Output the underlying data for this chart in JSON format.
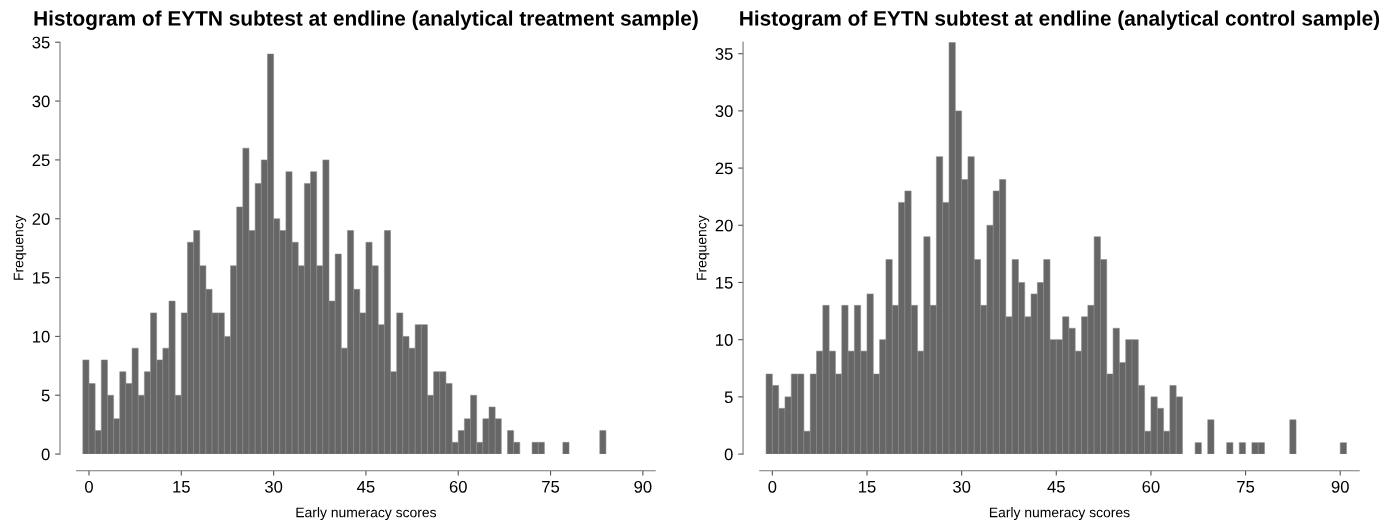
{
  "chart_data": [
    {
      "type": "histogram",
      "title": "Histogram of EYTN subtest at endline (analytical treatment sample)",
      "xlabel": "Early numeracy scores",
      "ylabel": "Frequency",
      "color": "#666666",
      "bins": [
        -1,
        0,
        1,
        2,
        3,
        4,
        5,
        6,
        7,
        8,
        9,
        10,
        11,
        12,
        13,
        14,
        15,
        16,
        17,
        18,
        19,
        20,
        21,
        22,
        23,
        24,
        25,
        26,
        27,
        28,
        29,
        30,
        31,
        32,
        33,
        34,
        35,
        36,
        37,
        38,
        39,
        40,
        41,
        42,
        43,
        44,
        45,
        46,
        47,
        48,
        49,
        50,
        51,
        52,
        53,
        54,
        55,
        56,
        57,
        58,
        59,
        60,
        61,
        62,
        63,
        64,
        65,
        66,
        67,
        68,
        69,
        70,
        71,
        72,
        73,
        74,
        75,
        76,
        77,
        78,
        79,
        80,
        81,
        82,
        83,
        84
      ],
      "values": [
        8,
        6,
        2,
        8,
        5,
        3,
        7,
        6,
        9,
        5,
        7,
        12,
        8,
        9,
        13,
        5,
        12,
        18,
        19,
        16,
        14,
        12,
        12,
        10,
        16,
        21,
        26,
        19,
        23,
        25,
        34,
        20,
        19,
        24,
        18,
        16,
        23,
        24,
        16,
        25,
        13,
        17,
        9,
        19,
        14,
        12,
        18,
        16,
        11,
        19,
        7,
        12,
        10,
        9,
        11,
        11,
        5,
        7,
        7,
        6,
        1,
        2,
        3,
        5,
        1,
        3,
        4,
        3,
        0,
        2,
        1,
        0,
        0,
        1,
        1,
        0,
        0,
        0,
        1,
        0,
        0,
        0,
        0,
        0,
        2
      ],
      "xlim": [
        -2,
        92
      ],
      "xticks": [
        0,
        15,
        30,
        45,
        60,
        75,
        90
      ],
      "ylim": [
        0,
        35
      ],
      "yticks": [
        0,
        5,
        10,
        15,
        20,
        25,
        30,
        35
      ],
      "grid": false
    },
    {
      "type": "histogram",
      "title": "Histogram of EYTN subtest at endline (analytical control sample)",
      "xlabel": "Early numeracy scores",
      "ylabel": "Frequency",
      "color": "#666666",
      "bins": [
        -1,
        0,
        1,
        2,
        3,
        4,
        5,
        6,
        7,
        8,
        9,
        10,
        11,
        12,
        13,
        14,
        15,
        16,
        17,
        18,
        19,
        20,
        21,
        22,
        23,
        24,
        25,
        26,
        27,
        28,
        29,
        30,
        31,
        32,
        33,
        34,
        35,
        36,
        37,
        38,
        39,
        40,
        41,
        42,
        43,
        44,
        45,
        46,
        47,
        48,
        49,
        50,
        51,
        52,
        53,
        54,
        55,
        56,
        57,
        58,
        59,
        60,
        61,
        62,
        63,
        64,
        65,
        66,
        67,
        68,
        69,
        70,
        71,
        72,
        73,
        74,
        75,
        76,
        77,
        78,
        79,
        80,
        81,
        82,
        83,
        84,
        85,
        86,
        87,
        88,
        89,
        90,
        91
      ],
      "values": [
        7,
        6,
        4,
        5,
        7,
        7,
        2,
        7,
        9,
        13,
        9,
        7,
        13,
        9,
        13,
        9,
        14,
        7,
        10,
        17,
        13,
        22,
        23,
        13,
        9,
        19,
        13,
        26,
        22,
        36,
        30,
        24,
        26,
        17,
        13,
        20,
        23,
        24,
        12,
        17,
        15,
        12,
        14,
        15,
        17,
        10,
        10,
        12,
        11,
        9,
        12,
        13,
        19,
        17,
        7,
        11,
        8,
        10,
        10,
        6,
        2,
        5,
        4,
        2,
        6,
        5,
        0,
        0,
        1,
        0,
        3,
        0,
        0,
        1,
        0,
        1,
        0,
        1,
        1,
        0,
        0,
        0,
        0,
        3,
        0,
        0,
        0,
        0,
        0,
        0,
        0,
        1
      ],
      "xlim": [
        -2,
        93
      ],
      "xticks": [
        0,
        15,
        30,
        45,
        60,
        75,
        90
      ],
      "ylim": [
        0,
        36
      ],
      "yticks": [
        0,
        5,
        10,
        15,
        20,
        25,
        30,
        35
      ],
      "grid": false
    }
  ]
}
